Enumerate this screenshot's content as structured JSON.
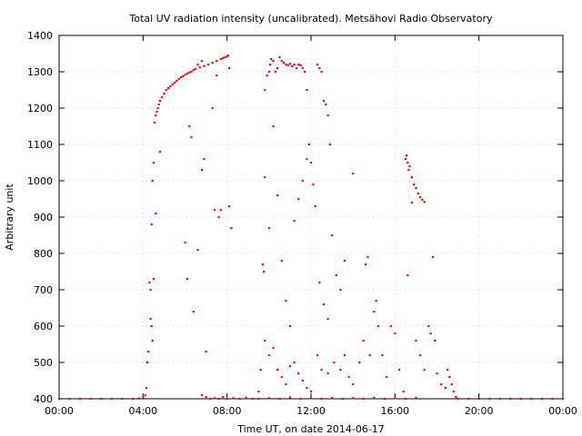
{
  "chart_data": {
    "type": "scatter",
    "title": "Total UV radiation intensity (uncalibrated). Metsähovi Radio Observatory",
    "xlabel": "Time UT, on date 2014-06-17",
    "ylabel": "Arbitrary unit",
    "xlim": [
      0,
      24
    ],
    "ylim": [
      400,
      1400
    ],
    "x_ticks": [
      {
        "value": 0,
        "label": "00:00"
      },
      {
        "value": 4,
        "label": "04:00"
      },
      {
        "value": 8,
        "label": "08:00"
      },
      {
        "value": 12,
        "label": "12:00"
      },
      {
        "value": 16,
        "label": "16:00"
      },
      {
        "value": 20,
        "label": "20:00"
      },
      {
        "value": 24,
        "label": "00:00"
      }
    ],
    "y_ticks": [
      {
        "value": 400,
        "label": "400"
      },
      {
        "value": 500,
        "label": "500"
      },
      {
        "value": 600,
        "label": "600"
      },
      {
        "value": 700,
        "label": "700"
      },
      {
        "value": 800,
        "label": "800"
      },
      {
        "value": 900,
        "label": "900"
      },
      {
        "value": 1000,
        "label": "1000"
      },
      {
        "value": 1100,
        "label": "1100"
      },
      {
        "value": 1200,
        "label": "1200"
      },
      {
        "value": 1300,
        "label": "1300"
      },
      {
        "value": 1400,
        "label": "1400"
      }
    ],
    "grid": true,
    "marker_color": "#ff0000",
    "series": [
      {
        "points": [
          [
            0,
            400
          ],
          [
            0.5,
            400
          ],
          [
            1,
            400
          ],
          [
            1.5,
            400
          ],
          [
            2,
            400
          ],
          [
            2.5,
            400
          ],
          [
            3,
            400
          ],
          [
            3.5,
            400
          ],
          [
            3.8,
            401
          ],
          [
            4,
            404
          ],
          [
            4.1,
            410
          ],
          [
            4.15,
            430
          ],
          [
            4.2,
            500
          ],
          [
            4.25,
            530
          ],
          [
            4.3,
            720
          ],
          [
            4.35,
            700
          ],
          [
            4.4,
            880
          ],
          [
            4.45,
            1000
          ],
          [
            4.5,
            1050
          ],
          [
            4.55,
            1160
          ],
          [
            4.6,
            1180
          ],
          [
            4.65,
            1190
          ],
          [
            4.7,
            1200
          ],
          [
            4.75,
            1210
          ],
          [
            4.8,
            1220
          ],
          [
            4.9,
            1230
          ],
          [
            5.0,
            1240
          ],
          [
            5.1,
            1250
          ],
          [
            5.2,
            1255
          ],
          [
            5.3,
            1260
          ],
          [
            5.4,
            1265
          ],
          [
            5.5,
            1270
          ],
          [
            5.6,
            1275
          ],
          [
            5.7,
            1280
          ],
          [
            5.8,
            1285
          ],
          [
            5.9,
            1288
          ],
          [
            6.0,
            1292
          ],
          [
            6.1,
            1295
          ],
          [
            6.2,
            1298
          ],
          [
            6.3,
            1300
          ],
          [
            6.4,
            1305
          ],
          [
            6.5,
            1308
          ],
          [
            6.7,
            1312
          ],
          [
            6.9,
            1316
          ],
          [
            7.1,
            1320
          ],
          [
            7.3,
            1325
          ],
          [
            7.5,
            1330
          ],
          [
            7.7,
            1335
          ],
          [
            7.8,
            1338
          ],
          [
            7.9,
            1340
          ],
          [
            8.0,
            1342
          ],
          [
            8.05,
            1345
          ],
          [
            8.1,
            1310
          ],
          [
            4.35,
            620
          ],
          [
            4.4,
            600
          ],
          [
            4.45,
            560
          ],
          [
            4.5,
            730
          ],
          [
            4.6,
            910
          ],
          [
            4.8,
            1080
          ],
          [
            6.1,
            730
          ],
          [
            6.2,
            1150
          ],
          [
            6.4,
            640
          ],
          [
            6.6,
            810
          ],
          [
            6.8,
            1030
          ],
          [
            7.0,
            530
          ],
          [
            7.4,
            920
          ],
          [
            7.6,
            900
          ],
          [
            7.7,
            920
          ],
          [
            8.1,
            930
          ],
          [
            8.2,
            870
          ],
          [
            7.3,
            1200
          ],
          [
            7.5,
            1290
          ],
          [
            6.9,
            1060
          ],
          [
            6.6,
            1320
          ],
          [
            6.8,
            1330
          ],
          [
            6.3,
            1120
          ],
          [
            6.0,
            830
          ],
          [
            6.8,
            410
          ],
          [
            7.0,
            405
          ],
          [
            7.2,
            400
          ],
          [
            7.4,
            402
          ],
          [
            7.6,
            400
          ],
          [
            7.8,
            405
          ],
          [
            8.0,
            400
          ],
          [
            8.3,
            402
          ],
          [
            8.6,
            400
          ],
          [
            8.9,
            403
          ],
          [
            9.2,
            400
          ],
          [
            9.5,
            420
          ],
          [
            9.6,
            480
          ],
          [
            9.7,
            770
          ],
          [
            9.75,
            750
          ],
          [
            9.8,
            1250
          ],
          [
            9.9,
            1290
          ],
          [
            10.0,
            1300
          ],
          [
            10.05,
            1320
          ],
          [
            10.1,
            1335
          ],
          [
            10.2,
            1330
          ],
          [
            10.3,
            1300
          ],
          [
            10.4,
            1310
          ],
          [
            10.5,
            1340
          ],
          [
            10.6,
            1330
          ],
          [
            10.7,
            1325
          ],
          [
            10.8,
            1320
          ],
          [
            10.9,
            1318
          ],
          [
            11.0,
            1322
          ],
          [
            11.1,
            1315
          ],
          [
            11.2,
            1320
          ],
          [
            11.3,
            1310
          ],
          [
            11.4,
            1320
          ],
          [
            11.5,
            1318
          ],
          [
            11.6,
            1310
          ],
          [
            11.7,
            1300
          ],
          [
            11.8,
            1250
          ],
          [
            11.9,
            1100
          ],
          [
            12.0,
            1050
          ],
          [
            12.1,
            990
          ],
          [
            12.2,
            930
          ],
          [
            12.3,
            1320
          ],
          [
            12.4,
            1310
          ],
          [
            12.5,
            1300
          ],
          [
            12.6,
            1220
          ],
          [
            12.7,
            1210
          ],
          [
            12.8,
            1180
          ],
          [
            12.9,
            1100
          ],
          [
            13.0,
            850
          ],
          [
            9.8,
            1010
          ],
          [
            10.0,
            870
          ],
          [
            10.2,
            1150
          ],
          [
            10.4,
            960
          ],
          [
            10.6,
            780
          ],
          [
            10.8,
            670
          ],
          [
            11.0,
            600
          ],
          [
            11.2,
            890
          ],
          [
            11.4,
            950
          ],
          [
            11.6,
            1000
          ],
          [
            11.8,
            1060
          ],
          [
            12.4,
            720
          ],
          [
            12.6,
            660
          ],
          [
            12.8,
            620
          ],
          [
            13.2,
            740
          ],
          [
            13.4,
            700
          ],
          [
            13.6,
            780
          ],
          [
            9.8,
            560
          ],
          [
            10.0,
            520
          ],
          [
            10.2,
            540
          ],
          [
            10.4,
            480
          ],
          [
            10.6,
            460
          ],
          [
            10.8,
            440
          ],
          [
            11.0,
            490
          ],
          [
            11.2,
            500
          ],
          [
            11.4,
            470
          ],
          [
            11.6,
            450
          ],
          [
            11.8,
            430
          ],
          [
            12.0,
            420
          ],
          [
            12.3,
            520
          ],
          [
            12.5,
            480
          ],
          [
            12.8,
            470
          ],
          [
            13.1,
            500
          ],
          [
            13.4,
            480
          ],
          [
            13.6,
            520
          ],
          [
            13.8,
            460
          ],
          [
            14.0,
            440
          ],
          [
            14.3,
            500
          ],
          [
            14.5,
            560
          ],
          [
            14.8,
            520
          ],
          [
            9.5,
            400
          ],
          [
            10.0,
            402
          ],
          [
            10.5,
            400
          ],
          [
            11.0,
            404
          ],
          [
            11.5,
            400
          ],
          [
            12.0,
            402
          ],
          [
            12.5,
            400
          ],
          [
            13.0,
            403
          ],
          [
            13.5,
            400
          ],
          [
            14.0,
            402
          ],
          [
            14.5,
            400
          ],
          [
            15.0,
            403
          ],
          [
            15.5,
            400
          ],
          [
            16.0,
            402
          ],
          [
            16.5,
            400
          ],
          [
            17.0,
            403
          ],
          [
            14.0,
            1020
          ],
          [
            14.6,
            770
          ],
          [
            14.7,
            790
          ],
          [
            15.0,
            640
          ],
          [
            15.1,
            670
          ],
          [
            15.2,
            600
          ],
          [
            15.4,
            520
          ],
          [
            15.6,
            460
          ],
          [
            15.8,
            600
          ],
          [
            16.0,
            580
          ],
          [
            16.2,
            480
          ],
          [
            16.4,
            420
          ],
          [
            16.5,
            1060
          ],
          [
            16.55,
            1070
          ],
          [
            16.6,
            1050
          ],
          [
            16.65,
            1030
          ],
          [
            16.7,
            1040
          ],
          [
            16.8,
            1010
          ],
          [
            16.9,
            990
          ],
          [
            17.0,
            980
          ],
          [
            17.1,
            965
          ],
          [
            17.2,
            955
          ],
          [
            17.3,
            948
          ],
          [
            17.4,
            942
          ],
          [
            16.6,
            740
          ],
          [
            16.8,
            940
          ],
          [
            17.0,
            560
          ],
          [
            17.2,
            520
          ],
          [
            17.4,
            480
          ],
          [
            17.6,
            600
          ],
          [
            17.7,
            580
          ],
          [
            17.8,
            790
          ],
          [
            17.9,
            560
          ],
          [
            18.0,
            470
          ],
          [
            18.2,
            440
          ],
          [
            18.4,
            430
          ],
          [
            18.5,
            480
          ],
          [
            18.6,
            460
          ],
          [
            18.7,
            440
          ],
          [
            18.8,
            420
          ],
          [
            18.9,
            405
          ],
          [
            19.0,
            400
          ],
          [
            19.5,
            400
          ],
          [
            20.0,
            400
          ],
          [
            20.5,
            400
          ],
          [
            21.0,
            400
          ],
          [
            21.5,
            400
          ],
          [
            22.0,
            400
          ],
          [
            22.5,
            400
          ],
          [
            23.0,
            400
          ],
          [
            23.5,
            400
          ],
          [
            24.0,
            400
          ]
        ]
      }
    ]
  }
}
